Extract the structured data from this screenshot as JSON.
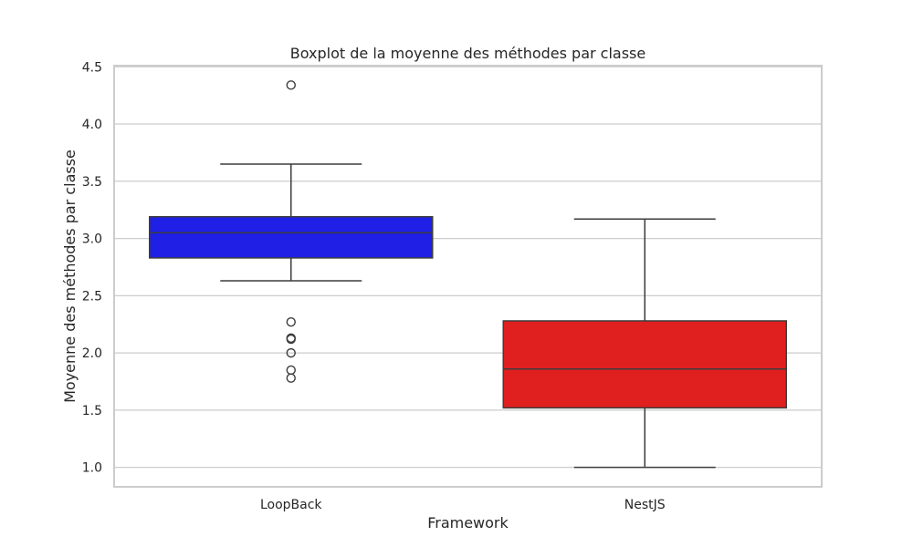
{
  "chart_data": {
    "type": "box",
    "title": "Boxplot de la moyenne des méthodes par classe",
    "xlabel": "Framework",
    "ylabel": "Moyenne des méthodes par classe",
    "ylim": [
      0.83,
      4.51
    ],
    "yticks": [
      1.0,
      1.5,
      2.0,
      2.5,
      3.0,
      3.5,
      4.0,
      4.5
    ],
    "ytick_labels": [
      "1.0",
      "1.5",
      "2.0",
      "2.5",
      "3.0",
      "3.5",
      "4.0",
      "4.5"
    ],
    "grid": true,
    "categories": [
      "LoopBack",
      "NestJS"
    ],
    "boxes": [
      {
        "category": "LoopBack",
        "color": "#1f1fe6",
        "whisker_low": 2.63,
        "q1": 2.83,
        "median": 3.05,
        "q3": 3.19,
        "whisker_high": 3.65,
        "outliers": [
          4.34,
          2.27,
          2.13,
          2.12,
          2.0,
          1.85,
          1.78
        ]
      },
      {
        "category": "NestJS",
        "color": "#e01f1f",
        "whisker_low": 1.0,
        "q1": 1.52,
        "median": 1.86,
        "q3": 2.28,
        "whisker_high": 3.17,
        "outliers": []
      }
    ]
  }
}
